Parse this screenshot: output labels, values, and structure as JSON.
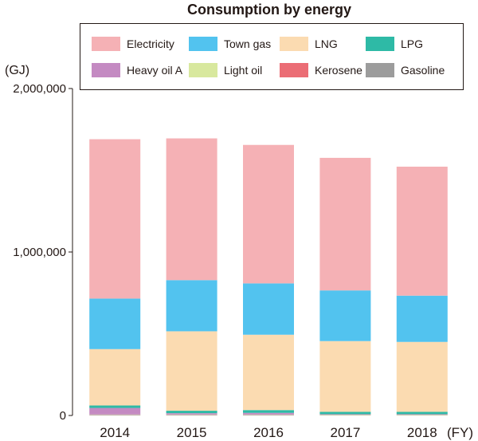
{
  "chart_data": {
    "type": "bar",
    "stacked": true,
    "title": "Consumption by energy",
    "ylabel": "(GJ)",
    "xlabel": "(FY)",
    "ylim": [
      0,
      2000000
    ],
    "yticks": [
      {
        "value": 0,
        "label": "0"
      },
      {
        "value": 1000000,
        "label": "1,000,000"
      },
      {
        "value": 2000000,
        "label": "2,000,000"
      }
    ],
    "categories": [
      "2014",
      "2015",
      "2016",
      "2017",
      "2018"
    ],
    "series": [
      {
        "name": "Gasoline",
        "color": "#9c9c9c",
        "values": [
          3000,
          3000,
          3000,
          2000,
          2000
        ]
      },
      {
        "name": "Kerosene",
        "color": "#eb6d75",
        "values": [
          1000,
          1000,
          1000,
          1000,
          1000
        ]
      },
      {
        "name": "Light oil",
        "color": "#d8e89e",
        "values": [
          2000,
          2000,
          2000,
          2000,
          2000
        ]
      },
      {
        "name": "Heavy oil A",
        "color": "#c48ac2",
        "values": [
          40000,
          8000,
          10000,
          3000,
          3000
        ]
      },
      {
        "name": "LPG",
        "color": "#2ebaa6",
        "values": [
          15000,
          15000,
          17000,
          14000,
          14000
        ]
      },
      {
        "name": "LNG",
        "color": "#fbdbb1",
        "values": [
          345000,
          486000,
          461000,
          433000,
          428000
        ]
      },
      {
        "name": "Town gas",
        "color": "#52c3ef",
        "values": [
          309000,
          313000,
          314000,
          310000,
          283000
        ]
      },
      {
        "name": "Electricity",
        "color": "#f5b1b5",
        "values": [
          975000,
          867000,
          847000,
          811000,
          789000
        ]
      }
    ],
    "legend": [
      [
        "Electricity",
        "Town gas",
        "LNG",
        "LPG"
      ],
      [
        "Heavy oil A",
        "Light oil",
        "Kerosene",
        "Gasoline"
      ]
    ],
    "legend_position": "top"
  }
}
